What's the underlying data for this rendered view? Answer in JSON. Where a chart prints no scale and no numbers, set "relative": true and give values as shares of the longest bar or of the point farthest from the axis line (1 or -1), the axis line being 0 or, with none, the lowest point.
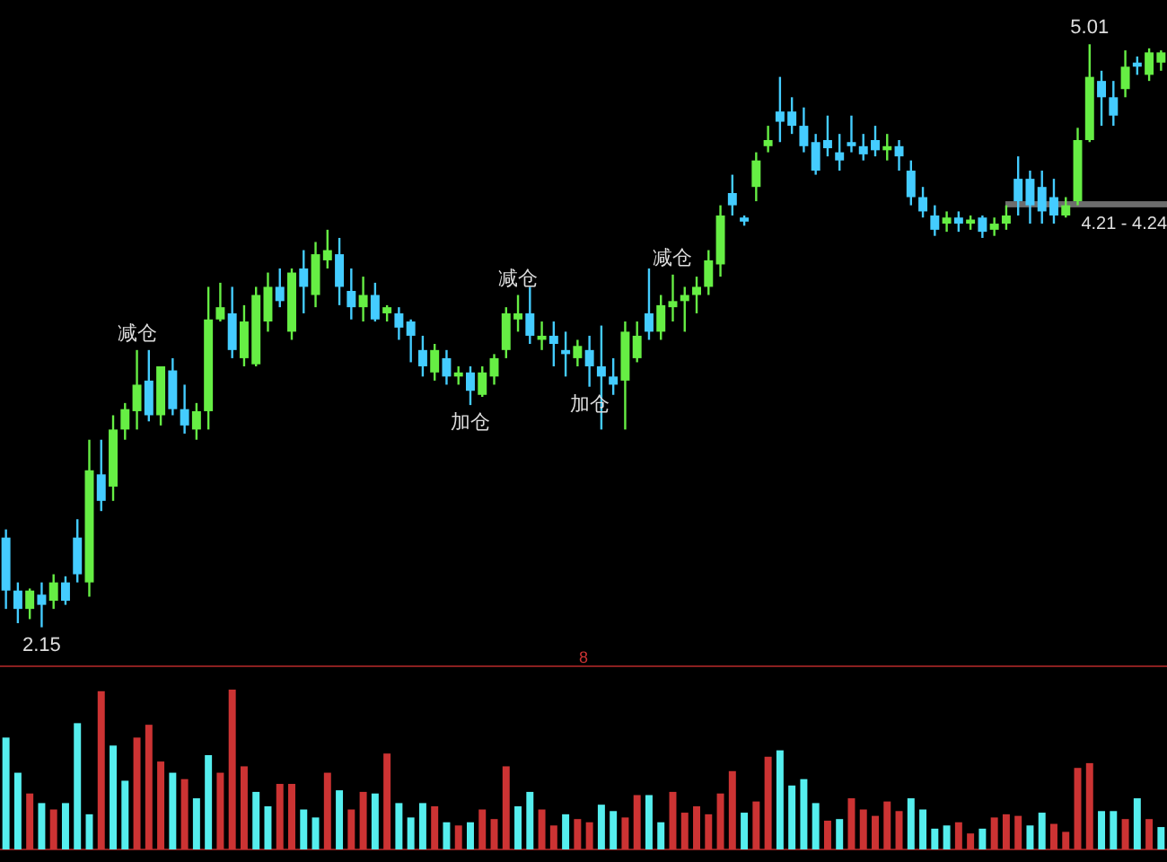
{
  "chart_data": [
    {
      "type": "candlestick",
      "categories": [
        null,
        null,
        null,
        null,
        null,
        null,
        null,
        null,
        null,
        null,
        null,
        null,
        null,
        null,
        null,
        null,
        null,
        null,
        null,
        null,
        null,
        null,
        null,
        null,
        null,
        null,
        null,
        null,
        null,
        null,
        null,
        null,
        null,
        null,
        null,
        null,
        null,
        null,
        null,
        null,
        null,
        null,
        null,
        null,
        null,
        null,
        null,
        null,
        null,
        null,
        null,
        null,
        null,
        null,
        null,
        null,
        null,
        null,
        null,
        null,
        null,
        null,
        null,
        null,
        null,
        null,
        null,
        null,
        null,
        null,
        null,
        null,
        null,
        null,
        null,
        null,
        null,
        null,
        null,
        null,
        null,
        null,
        null,
        null,
        null,
        null,
        null,
        null,
        null,
        null,
        null,
        null,
        null,
        null,
        null,
        null,
        null,
        null
      ],
      "ohlc": [
        [
          2.59,
          2.63,
          2.24,
          2.33
        ],
        [
          2.33,
          2.37,
          2.17,
          2.24
        ],
        [
          2.24,
          2.34,
          2.19,
          2.33
        ],
        [
          2.31,
          2.37,
          2.15,
          2.26
        ],
        [
          2.28,
          2.41,
          2.24,
          2.37
        ],
        [
          2.37,
          2.4,
          2.26,
          2.28
        ],
        [
          2.59,
          2.68,
          2.37,
          2.41
        ],
        [
          2.37,
          3.07,
          2.3,
          2.92
        ],
        [
          2.9,
          3.07,
          2.72,
          2.77
        ],
        [
          2.84,
          3.19,
          2.77,
          3.12
        ],
        [
          3.12,
          3.25,
          3.07,
          3.22
        ],
        [
          3.21,
          3.51,
          3.12,
          3.34
        ],
        [
          3.36,
          3.51,
          3.16,
          3.19
        ],
        [
          3.19,
          3.43,
          3.14,
          3.43
        ],
        [
          3.41,
          3.47,
          3.19,
          3.22
        ],
        [
          3.22,
          3.34,
          3.1,
          3.14
        ],
        [
          3.12,
          3.25,
          3.07,
          3.21
        ],
        [
          3.21,
          3.82,
          3.12,
          3.66
        ],
        [
          3.66,
          3.84,
          3.65,
          3.72
        ],
        [
          3.69,
          3.82,
          3.47,
          3.51
        ],
        [
          3.47,
          3.73,
          3.43,
          3.65
        ],
        [
          3.44,
          3.82,
          3.43,
          3.78
        ],
        [
          3.65,
          3.89,
          3.6,
          3.82
        ],
        [
          3.82,
          3.91,
          3.72,
          3.75
        ],
        [
          3.6,
          3.91,
          3.56,
          3.89
        ],
        [
          3.91,
          4.0,
          3.69,
          3.82
        ],
        [
          3.78,
          4.04,
          3.72,
          3.98
        ],
        [
          3.95,
          4.1,
          3.91,
          4.0
        ],
        [
          3.98,
          4.06,
          3.73,
          3.82
        ],
        [
          3.8,
          3.91,
          3.66,
          3.72
        ],
        [
          3.72,
          3.87,
          3.65,
          3.78
        ],
        [
          3.78,
          3.84,
          3.65,
          3.66
        ],
        [
          3.69,
          3.73,
          3.65,
          3.72
        ],
        [
          3.69,
          3.72,
          3.56,
          3.62
        ],
        [
          3.65,
          3.66,
          3.45,
          3.58
        ],
        [
          3.51,
          3.58,
          3.38,
          3.43
        ],
        [
          3.4,
          3.54,
          3.36,
          3.51
        ],
        [
          3.47,
          3.51,
          3.34,
          3.38
        ],
        [
          3.38,
          3.43,
          3.34,
          3.4
        ],
        [
          3.4,
          3.43,
          3.24,
          3.31
        ],
        [
          3.29,
          3.43,
          3.28,
          3.4
        ],
        [
          3.38,
          3.49,
          3.34,
          3.47
        ],
        [
          3.51,
          3.72,
          3.47,
          3.69
        ],
        [
          3.66,
          3.78,
          3.6,
          3.69
        ],
        [
          3.69,
          3.82,
          3.54,
          3.58
        ],
        [
          3.56,
          3.65,
          3.51,
          3.58
        ],
        [
          3.58,
          3.65,
          3.43,
          3.54
        ],
        [
          3.51,
          3.6,
          3.38,
          3.49
        ],
        [
          3.47,
          3.56,
          3.43,
          3.53
        ],
        [
          3.51,
          3.58,
          3.33,
          3.43
        ],
        [
          3.43,
          3.63,
          3.12,
          3.38
        ],
        [
          3.38,
          3.47,
          3.29,
          3.34
        ],
        [
          3.36,
          3.65,
          3.12,
          3.6
        ],
        [
          3.47,
          3.65,
          3.45,
          3.58
        ],
        [
          3.69,
          3.91,
          3.56,
          3.6
        ],
        [
          3.6,
          3.78,
          3.56,
          3.73
        ],
        [
          3.72,
          3.88,
          3.65,
          3.75
        ],
        [
          3.75,
          3.82,
          3.6,
          3.78
        ],
        [
          3.78,
          3.87,
          3.69,
          3.82
        ],
        [
          3.82,
          4.0,
          3.78,
          3.95
        ],
        [
          3.93,
          4.22,
          3.87,
          4.17
        ],
        [
          4.28,
          4.37,
          4.17,
          4.22
        ],
        [
          4.16,
          4.17,
          4.12,
          4.14
        ],
        [
          4.31,
          4.48,
          4.24,
          4.44
        ],
        [
          4.51,
          4.61,
          4.48,
          4.54
        ],
        [
          4.68,
          4.85,
          4.53,
          4.63
        ],
        [
          4.68,
          4.75,
          4.57,
          4.61
        ],
        [
          4.61,
          4.7,
          4.48,
          4.51
        ],
        [
          4.53,
          4.57,
          4.37,
          4.39
        ],
        [
          4.54,
          4.66,
          4.46,
          4.5
        ],
        [
          4.48,
          4.57,
          4.39,
          4.44
        ],
        [
          4.53,
          4.66,
          4.48,
          4.51
        ],
        [
          4.51,
          4.57,
          4.44,
          4.47
        ],
        [
          4.54,
          4.61,
          4.46,
          4.49
        ],
        [
          4.49,
          4.57,
          4.44,
          4.51
        ],
        [
          4.51,
          4.54,
          4.39,
          4.46
        ],
        [
          4.39,
          4.44,
          4.22,
          4.26
        ],
        [
          4.26,
          4.31,
          4.16,
          4.19
        ],
        [
          4.17,
          4.22,
          4.07,
          4.1
        ],
        [
          4.13,
          4.19,
          4.09,
          4.16
        ],
        [
          4.16,
          4.19,
          4.09,
          4.13
        ],
        [
          4.13,
          4.17,
          4.1,
          4.15
        ],
        [
          4.16,
          4.17,
          4.06,
          4.09
        ],
        [
          4.1,
          4.16,
          4.07,
          4.13
        ],
        [
          4.13,
          4.22,
          4.1,
          4.17
        ],
        [
          4.35,
          4.46,
          4.17,
          4.24
        ],
        [
          4.35,
          4.39,
          4.13,
          4.22
        ],
        [
          4.31,
          4.39,
          4.13,
          4.19
        ],
        [
          4.26,
          4.35,
          4.13,
          4.17
        ],
        [
          4.17,
          4.26,
          4.16,
          4.22
        ],
        [
          4.24,
          4.6,
          4.22,
          4.54
        ],
        [
          4.54,
          5.01,
          4.53,
          4.85
        ],
        [
          4.83,
          4.88,
          4.61,
          4.75
        ],
        [
          4.75,
          4.83,
          4.61,
          4.66
        ],
        [
          4.79,
          4.98,
          4.75,
          4.9
        ],
        [
          4.92,
          4.95,
          4.86,
          4.9
        ],
        [
          4.86,
          4.99,
          4.83,
          4.97
        ],
        [
          4.92,
          4.98,
          4.88,
          4.97
        ]
      ],
      "colors": [
        "#44ccff",
        "#44ccff",
        "#66ee44",
        "#44ccff",
        "#66ee44",
        "#44ccff",
        "#44ccff",
        "#66ee44",
        "#44ccff",
        "#66ee44",
        "#66ee44",
        "#66ee44",
        "#44ccff",
        "#66ee44",
        "#44ccff",
        "#44ccff",
        "#66ee44",
        "#66ee44",
        "#66ee44",
        "#44ccff",
        "#66ee44",
        "#66ee44",
        "#66ee44",
        "#44ccff",
        "#66ee44",
        "#44ccff",
        "#66ee44",
        "#66ee44",
        "#44ccff",
        "#44ccff",
        "#66ee44",
        "#44ccff",
        "#66ee44",
        "#44ccff",
        "#44ccff",
        "#44ccff",
        "#66ee44",
        "#44ccff",
        "#66ee44",
        "#44ccff",
        "#66ee44",
        "#66ee44",
        "#66ee44",
        "#66ee44",
        "#44ccff",
        "#66ee44",
        "#44ccff",
        "#44ccff",
        "#66ee44",
        "#44ccff",
        "#44ccff",
        "#44ccff",
        "#66ee44",
        "#66ee44",
        "#44ccff",
        "#66ee44",
        "#66ee44",
        "#66ee44",
        "#66ee44",
        "#66ee44",
        "#66ee44",
        "#44ccff",
        "#44ccff",
        "#66ee44",
        "#66ee44",
        "#44ccff",
        "#44ccff",
        "#44ccff",
        "#44ccff",
        "#44ccff",
        "#44ccff",
        "#44ccff",
        "#44ccff",
        "#44ccff",
        "#66ee44",
        "#44ccff",
        "#44ccff",
        "#44ccff",
        "#44ccff",
        "#66ee44",
        "#44ccff",
        "#66ee44",
        "#44ccff",
        "#66ee44",
        "#66ee44",
        "#44ccff",
        "#44ccff",
        "#44ccff",
        "#44ccff",
        "#66ee44",
        "#66ee44",
        "#66ee44",
        "#44ccff",
        "#44ccff",
        "#66ee44",
        "#44ccff",
        "#66ee44",
        "#66ee44"
      ],
      "annotations": [
        {
          "text": "减仓",
          "y": 3.51
        },
        {
          "text": "减仓",
          "y": 3.78
        },
        {
          "text": "减仓",
          "y": 3.88
        },
        {
          "text": "加仓",
          "y": 3.24
        },
        {
          "text": "加仓",
          "y": 3.33
        },
        {
          "text": "5.01",
          "y": 5.01
        },
        {
          "text": "2.15",
          "y": 2.15
        }
      ],
      "bands": [
        {
          "axis": "y",
          "from": 4.21,
          "to": 4.24,
          "label": "4.21 - 4.24",
          "color": "#888888"
        }
      ]
    },
    {
      "type": "bar",
      "relative": true,
      "categories": [
        null,
        null,
        null,
        null,
        null,
        null,
        null,
        null,
        null,
        null,
        null,
        null,
        null,
        null,
        null,
        null,
        null,
        null,
        null,
        null,
        null,
        null,
        null,
        null,
        null,
        null,
        null,
        null,
        null,
        null,
        null,
        null,
        null,
        null,
        null,
        null,
        null,
        null,
        null,
        null,
        null,
        null,
        null,
        null,
        null,
        null,
        null,
        null,
        null,
        null,
        null,
        null,
        null,
        null,
        null,
        null,
        null,
        null,
        null,
        null,
        null,
        null,
        null,
        null,
        null,
        null,
        null,
        null,
        null,
        null,
        null,
        null,
        null,
        null,
        null,
        null,
        null,
        null,
        null,
        null,
        null,
        null,
        null,
        null,
        null,
        null,
        null,
        null,
        null,
        null,
        null,
        null,
        null,
        null,
        null,
        null,
        null,
        null
      ],
      "values": [
        0.7,
        0.48,
        0.35,
        0.29,
        0.25,
        0.29,
        0.79,
        0.22,
        0.99,
        0.65,
        0.43,
        0.7,
        0.78,
        0.55,
        0.48,
        0.44,
        0.32,
        0.59,
        0.48,
        1,
        0.52,
        0.36,
        0.27,
        0.41,
        0.41,
        0.25,
        0.2,
        0.48,
        0.37,
        0.25,
        0.36,
        0.35,
        0.6,
        0.29,
        0.2,
        0.29,
        0.27,
        0.17,
        0.15,
        0.17,
        0.25,
        0.19,
        0.52,
        0.27,
        0.36,
        0.25,
        0.15,
        0.22,
        0.19,
        0.17,
        0.28,
        0.24,
        0.2,
        0.34,
        0.34,
        0.17,
        0.36,
        0.23,
        0.27,
        0.22,
        0.35,
        0.49,
        0.23,
        0.3,
        0.58,
        0.62,
        0.4,
        0.44,
        0.29,
        0.18,
        0.19,
        0.32,
        0.25,
        0.21,
        0.3,
        0.24,
        0.32,
        0.25,
        0.13,
        0.15,
        0.17,
        0.1,
        0.13,
        0.2,
        0.22,
        0.21,
        0.15,
        0.23,
        0.16,
        0.11,
        0.51,
        0.54,
        0.24,
        0.24,
        0.19,
        0.32,
        0.19,
        0.14
      ],
      "colors": [
        "#55eeee",
        "#55eeee",
        "#cc3333",
        "#55eeee",
        "#cc3333",
        "#55eeee",
        "#55eeee",
        "#55eeee",
        "#cc3333",
        "#55eeee",
        "#55eeee",
        "#cc3333",
        "#cc3333",
        "#cc3333",
        "#55eeee",
        "#cc3333",
        "#55eeee",
        "#55eeee",
        "#cc3333",
        "#cc3333",
        "#cc3333",
        "#55eeee",
        "#55eeee",
        "#cc3333",
        "#cc3333",
        "#55eeee",
        "#55eeee",
        "#cc3333",
        "#55eeee",
        "#cc3333",
        "#cc3333",
        "#55eeee",
        "#cc3333",
        "#55eeee",
        "#55eeee",
        "#55eeee",
        "#cc3333",
        "#55eeee",
        "#cc3333",
        "#55eeee",
        "#cc3333",
        "#cc3333",
        "#cc3333",
        "#55eeee",
        "#55eeee",
        "#cc3333",
        "#cc3333",
        "#55eeee",
        "#cc3333",
        "#cc3333",
        "#55eeee",
        "#55eeee",
        "#cc3333",
        "#cc3333",
        "#55eeee",
        "#55eeee",
        "#cc3333",
        "#cc3333",
        "#cc3333",
        "#cc3333",
        "#cc3333",
        "#cc3333",
        "#55eeee",
        "#cc3333",
        "#cc3333",
        "#55eeee",
        "#55eeee",
        "#55eeee",
        "#55eeee",
        "#cc3333",
        "#55eeee",
        "#cc3333",
        "#cc3333",
        "#cc3333",
        "#cc3333",
        "#cc3333",
        "#55eeee",
        "#55eeee",
        "#55eeee",
        "#55eeee",
        "#cc3333",
        "#cc3333",
        "#55eeee",
        "#cc3333",
        "#cc3333",
        "#cc3333",
        "#55eeee",
        "#55eeee",
        "#cc3333",
        "#cc3333",
        "#cc3333",
        "#cc3333",
        "#55eeee",
        "#55eeee",
        "#cc3333",
        "#55eeee",
        "#cc3333",
        "#55eeee"
      ],
      "annotations": [
        "8"
      ]
    }
  ]
}
